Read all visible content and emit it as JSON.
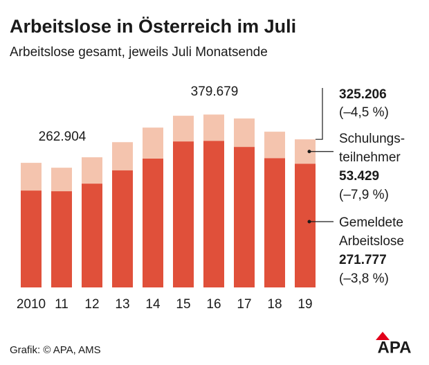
{
  "chart_data": {
    "type": "stacked_bar",
    "title": "Arbeitslose in Österreich im Juli",
    "subtitle": "Arbeitslose gesamt, jeweils Juli Monatsende",
    "categories": [
      "2010",
      "11",
      "12",
      "13",
      "14",
      "15",
      "16",
      "17",
      "18",
      "19"
    ],
    "series": [
      {
        "name": "Gemeldete Arbeitslose",
        "color": "#e0503a",
        "values": [
          212800,
          211300,
          228000,
          257000,
          283000,
          320700,
          322000,
          308600,
          284000,
          271777
        ],
        "value_labels": [
          null,
          null,
          null,
          null,
          null,
          null,
          null,
          null,
          null,
          "271.777"
        ]
      },
      {
        "name": "Schulungs-teilnehmer",
        "color": "#f4c4ae",
        "values": [
          60800,
          51604,
          57800,
          62000,
          68000,
          56300,
          57679,
          62400,
          58000,
          53429
        ],
        "value_labels": [
          null,
          null,
          null,
          null,
          null,
          null,
          null,
          null,
          null,
          "53.429"
        ]
      }
    ],
    "ylim": [
      0,
      400000
    ],
    "annotations": [
      {
        "text": "262.904",
        "category": "11"
      },
      {
        "text": "379.679",
        "category": "16"
      },
      {
        "text": "325.206",
        "category": "19"
      },
      {
        "text": "(–4,5 %)",
        "category": "19"
      },
      {
        "text": "(–7,9 %)",
        "category": "19"
      },
      {
        "text": "(–3,8 %)",
        "category": "19"
      }
    ],
    "source": "Grafik: © APA, AMS",
    "logo": "APA"
  }
}
